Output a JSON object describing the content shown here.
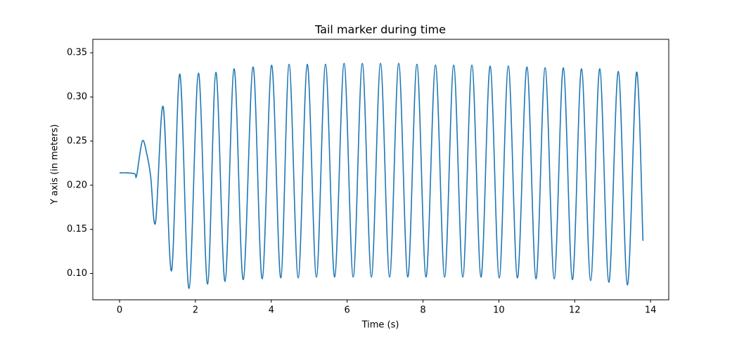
{
  "chart_data": {
    "type": "line",
    "title": "Tail marker during time",
    "x_label": "Time (s)",
    "y_label": "Y axis (in meters)",
    "x": [
      0,
      0.2,
      0.4,
      0.45,
      0.6,
      0.72,
      0.82,
      0.95,
      1.15,
      1.37,
      1.59,
      1.83,
      2.08,
      2.32,
      2.54,
      2.78,
      3.02,
      3.26,
      3.52,
      3.76,
      4.01,
      4.25,
      4.47,
      4.71,
      4.95,
      5.19,
      5.43,
      5.67,
      5.92,
      6.16,
      6.4,
      6.64,
      6.88,
      7.12,
      7.36,
      7.6,
      7.84,
      8.08,
      8.33,
      8.57,
      8.81,
      9.05,
      9.29,
      9.53,
      9.77,
      10.01,
      10.25,
      10.49,
      10.74,
      10.98,
      11.22,
      11.46,
      11.7,
      11.94,
      12.18,
      12.42,
      12.66,
      12.9,
      13.15,
      13.39,
      13.63,
      13.8
    ],
    "series": [
      {
        "name": "Tail marker",
        "color": "#1f77b4",
        "values": [
          0.214,
          0.214,
          0.213,
          0.211,
          0.25,
          0.235,
          0.21,
          0.158,
          0.289,
          0.103,
          0.326,
          0.083,
          0.327,
          0.088,
          0.328,
          0.091,
          0.332,
          0.093,
          0.334,
          0.094,
          0.336,
          0.095,
          0.337,
          0.095,
          0.337,
          0.096,
          0.337,
          0.096,
          0.338,
          0.096,
          0.338,
          0.096,
          0.338,
          0.096,
          0.338,
          0.096,
          0.337,
          0.096,
          0.336,
          0.096,
          0.336,
          0.096,
          0.336,
          0.096,
          0.335,
          0.095,
          0.335,
          0.095,
          0.334,
          0.094,
          0.333,
          0.094,
          0.333,
          0.093,
          0.332,
          0.092,
          0.332,
          0.09,
          0.329,
          0.087,
          0.328,
          0.137
        ]
      }
    ],
    "xlim": [
      -0.705,
      14.48
    ],
    "ylim": [
      0.0702,
      0.3653
    ],
    "xticks": [
      0,
      2,
      4,
      6,
      8,
      10,
      12,
      14
    ],
    "yticks": [
      {
        "value": 0.1,
        "label": "0.10"
      },
      0.15,
      {
        "value": 0.2,
        "label": "0.20"
      },
      0.25,
      {
        "value": 0.3,
        "label": "0.30"
      },
      0.35
    ],
    "grid": false
  }
}
